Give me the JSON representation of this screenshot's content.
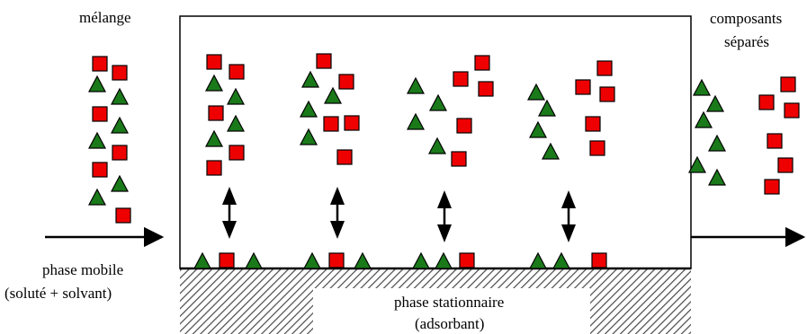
{
  "labels": {
    "mixture": "mélange",
    "separated_line1": "composants",
    "separated_line2": "séparés",
    "mobile_phase_line1": "phase mobile",
    "mobile_phase_line2": "(soluté + solvant)",
    "stationary_phase_line1": "phase stationnaire",
    "stationary_phase_line2": "(adsorbant)"
  },
  "colors": {
    "square_fill": "#ee0000",
    "triangle_fill": "#1a7a1a",
    "outline": "#000000",
    "hatch": "#555555"
  },
  "shapes": {
    "square": "red-square-component",
    "triangle": "green-triangle-component"
  }
}
